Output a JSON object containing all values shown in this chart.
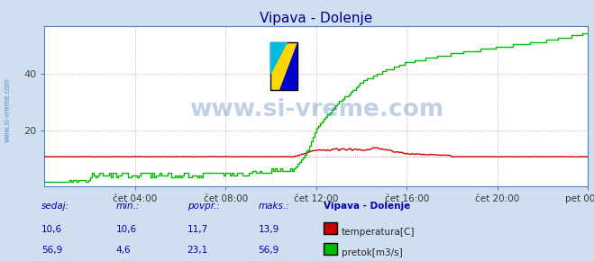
{
  "title": "Vipava - Dolenje",
  "bg_color": "#d0dff0",
  "plot_bg_color": "#ffffff",
  "border_color": "#6090c0",
  "grid_color": "#e08080",
  "x_min": 0,
  "x_max": 288,
  "y_min": 0,
  "y_max": 56.9,
  "y_ticks": [
    20,
    40
  ],
  "x_tick_labels": [
    "čet 04:00",
    "čet 08:00",
    "čet 12:00",
    "čet 16:00",
    "čet 20:00",
    "pet 00:00"
  ],
  "x_tick_positions": [
    48,
    96,
    144,
    192,
    240,
    288
  ],
  "temp_color": "#cc0000",
  "flow_color": "#00bb00",
  "axis_color": "#5080c0",
  "title_color": "#000088",
  "watermark_text": "www.si-vreme.com",
  "watermark_color": "#3366aa",
  "watermark_alpha": 0.3,
  "sidebar_text": "www.si-vreme.com",
  "sidebar_color": "#4488bb",
  "legend_title": "Vipava - Dolenje",
  "label_color": "#0000aa",
  "footer_labels": [
    "sedaj:",
    "min.:",
    "povpr.:",
    "maks.:"
  ],
  "temp_values_str": [
    "10,6",
    "10,6",
    "11,7",
    "13,9"
  ],
  "flow_values_str": [
    "56,9",
    "4,6",
    "23,1",
    "56,9"
  ],
  "temp_label": "temperatura[C]",
  "flow_label": "pretok[m3/s]"
}
